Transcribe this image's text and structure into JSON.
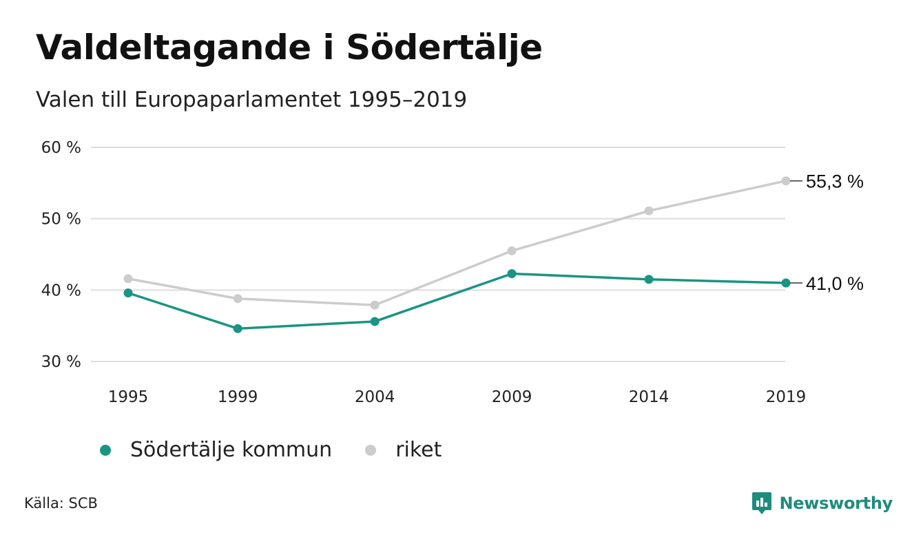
{
  "title": "Valdeltagande i Södertälje",
  "subtitle": "Valen till Europaparlamentet 1995–2019",
  "source": "Källa: SCB",
  "brand": {
    "name": "Newsworthy",
    "icon": "chart-bubble-icon",
    "color": "#1e8c7c"
  },
  "chart_data": {
    "type": "line",
    "title": "Valdeltagande i Södertälje",
    "subtitle": "Valen till Europaparlamentet 1995–2019",
    "x": [
      1995,
      1999,
      2004,
      2009,
      2014,
      2019
    ],
    "x_tick_labels": [
      "1995",
      "1999",
      "2004",
      "2009",
      "2014",
      "2019"
    ],
    "y_ticks": [
      30,
      40,
      50,
      60
    ],
    "y_tick_labels": [
      "30 %",
      "40 %",
      "50 %",
      "60 %"
    ],
    "ylim": [
      30,
      60
    ],
    "grid": true,
    "legend_position": "bottom",
    "series": [
      {
        "name": "riket",
        "color": "#cccccc",
        "values": [
          41.6,
          38.8,
          37.9,
          45.5,
          51.1,
          55.3
        ],
        "end_label": "55,3 %"
      },
      {
        "name": "Södertälje kommun",
        "color": "#1a9484",
        "values": [
          39.6,
          34.6,
          35.6,
          42.3,
          41.5,
          41.0
        ],
        "end_label": "41,0 %"
      }
    ]
  }
}
